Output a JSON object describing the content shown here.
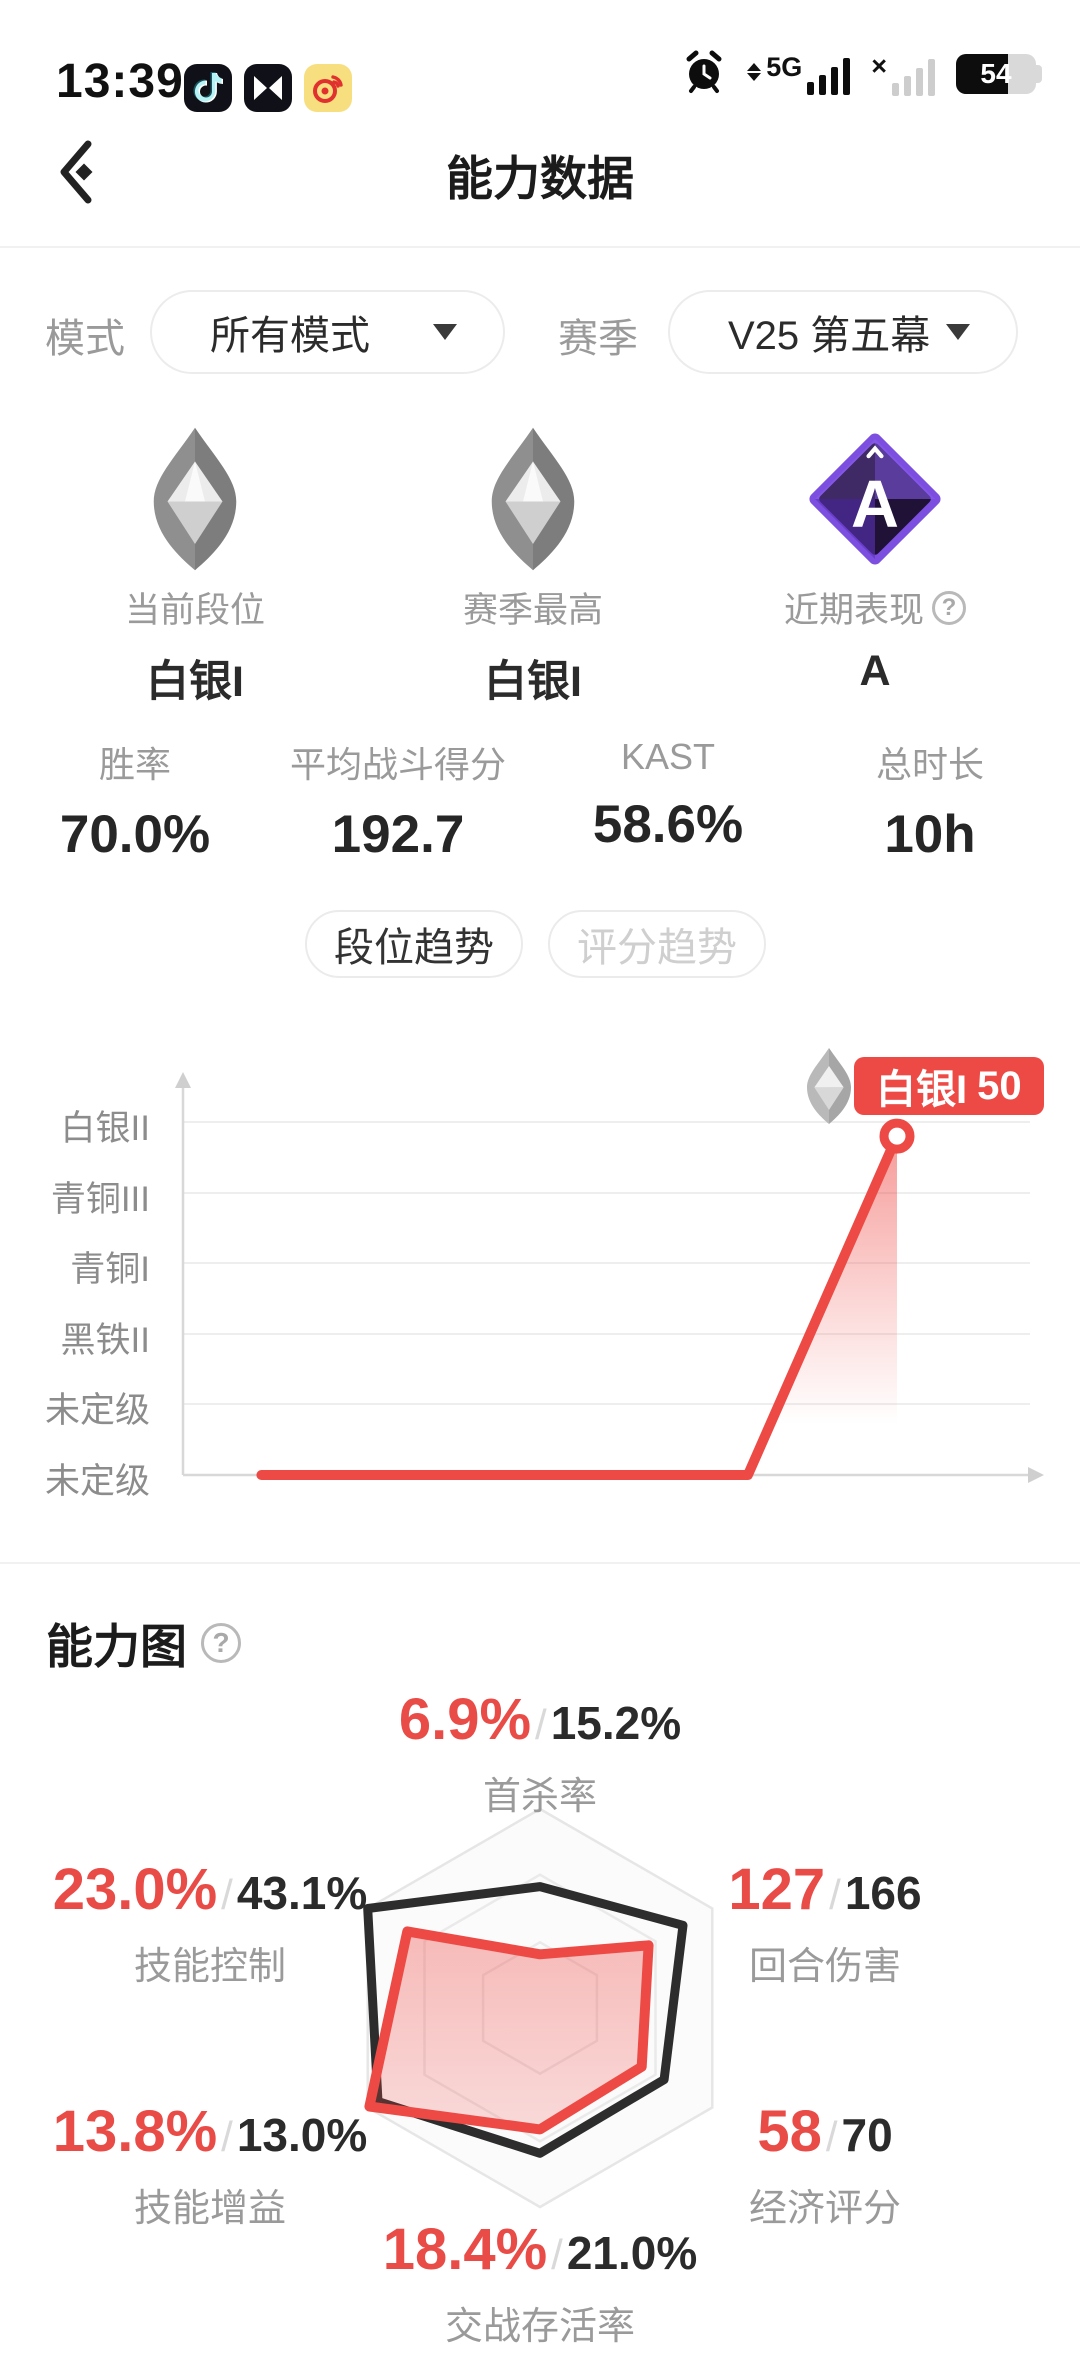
{
  "status_bar": {
    "time": "13:39",
    "network": "5G",
    "sim2_no_service": "×",
    "battery": "54",
    "app_icons": [
      "douyin",
      "capcut",
      "weibo"
    ]
  },
  "header": {
    "title": "能力数据"
  },
  "filters": {
    "mode_label": "模式",
    "mode_value": "所有模式",
    "season_label": "赛季",
    "season_value": "V25 第五幕"
  },
  "rank_badges": [
    {
      "label": "当前段位",
      "value": "白银I",
      "icon": "silver-diamond"
    },
    {
      "label": "赛季最高",
      "value": "白银I",
      "icon": "silver-diamond"
    },
    {
      "label": "近期表现",
      "value": "A",
      "icon": "grade-a-diamond",
      "help_icon": "?"
    }
  ],
  "summary_stats": [
    {
      "label": "胜率",
      "value": "70.0%"
    },
    {
      "label": "平均战斗得分",
      "value": "192.7"
    },
    {
      "label": "KAST",
      "value": "58.6%"
    },
    {
      "label": "总时长",
      "value": "10h"
    }
  ],
  "trend_tabs": [
    {
      "label": "段位趋势",
      "active": true
    },
    {
      "label": "评分趋势",
      "active": false
    }
  ],
  "ability_section": {
    "title": "能力图",
    "help_icon": "?"
  },
  "colors": {
    "accent": "#ee4a45",
    "dark_polygon": "#2d2d2d",
    "gray_text": "#9a9a9a",
    "grade_a_purple": "#7c4fe0"
  },
  "chart_data": [
    {
      "type": "line",
      "title": "段位趋势",
      "y_ticks": [
        "白银II",
        "青铜III",
        "青铜I",
        "黑铁II",
        "未定级",
        "未定级"
      ],
      "tooltip": {
        "rank": "白银I",
        "score": "50"
      },
      "series": [
        {
          "name": "段位",
          "points": [
            {
              "x": 0.092,
              "level": 0
            },
            {
              "x": 0.663,
              "level": 0
            },
            {
              "x": 0.838,
              "level": 4.8
            }
          ]
        }
      ],
      "layout": {
        "levels_bottom_to_top": 6,
        "grid": true,
        "legend": "none"
      }
    },
    {
      "type": "radar",
      "title": "能力图",
      "axes": [
        {
          "label": "首杀率",
          "player": "6.9%",
          "average": "15.2%",
          "player_ratio": 0.27,
          "average_ratio": 0.61
        },
        {
          "label": "回合伤害",
          "player": "127",
          "average": "166",
          "player_ratio": 0.63,
          "average_ratio": 0.83
        },
        {
          "label": "经济评分",
          "player": "58",
          "average": "70",
          "player_ratio": 0.59,
          "average_ratio": 0.72
        },
        {
          "label": "交战存活率",
          "player": "18.4%",
          "average": "21.0%",
          "player_ratio": 0.61,
          "average_ratio": 0.73
        },
        {
          "label": "技能增益",
          "player": "13.8%",
          "average": "13.0%",
          "player_ratio": 0.99,
          "average_ratio": 0.94
        },
        {
          "label": "技能控制",
          "player": "23.0%",
          "average": "43.1%",
          "player_ratio": 0.77,
          "average_ratio": 1.0
        }
      ],
      "rings": [
        1.0,
        0.67,
        0.33
      ],
      "layout": {
        "shape": "hexagon",
        "vertex_top": true
      }
    }
  ]
}
